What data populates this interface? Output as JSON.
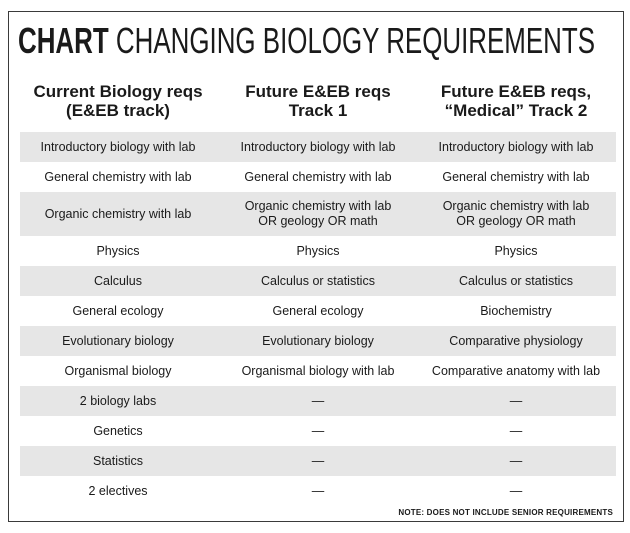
{
  "title": {
    "bold": "CHART",
    "light": "CHANGING BIOLOGY REQUIREMENTS"
  },
  "headers": [
    "Current Biology reqs\n(E&EB track)",
    "Future E&EB reqs\nTrack 1",
    "Future E&EB reqs,\n“Medical” Track 2"
  ],
  "rows": [
    [
      "Introductory biology with lab",
      "Introductory biology with lab",
      "Introductory biology with lab"
    ],
    [
      "General chemistry with lab",
      "General chemistry with lab",
      "General chemistry with lab"
    ],
    [
      "Organic chemistry with lab",
      "Organic chemistry with lab\nOR geology OR math",
      "Organic chemistry with lab\nOR geology OR math"
    ],
    [
      "Physics",
      "Physics",
      "Physics"
    ],
    [
      "Calculus",
      "Calculus or statistics",
      "Calculus or statistics"
    ],
    [
      "General ecology",
      "General ecology",
      "Biochemistry"
    ],
    [
      "Evolutionary biology",
      "Evolutionary biology",
      "Comparative physiology"
    ],
    [
      "Organismal biology",
      "Organismal biology with lab",
      "Comparative anatomy with lab"
    ],
    [
      "2 biology labs",
      "—",
      "—"
    ],
    [
      "Genetics",
      "—",
      "—"
    ],
    [
      "Statistics",
      "—",
      "—"
    ],
    [
      "2 electives",
      "—",
      "—"
    ]
  ],
  "note": "NOTE: DOES NOT INCLUDE SENIOR REQUIREMENTS",
  "colors": {
    "shade": "#e6e6e6",
    "border": "#3a3a3a",
    "text": "#1a1a1a"
  }
}
